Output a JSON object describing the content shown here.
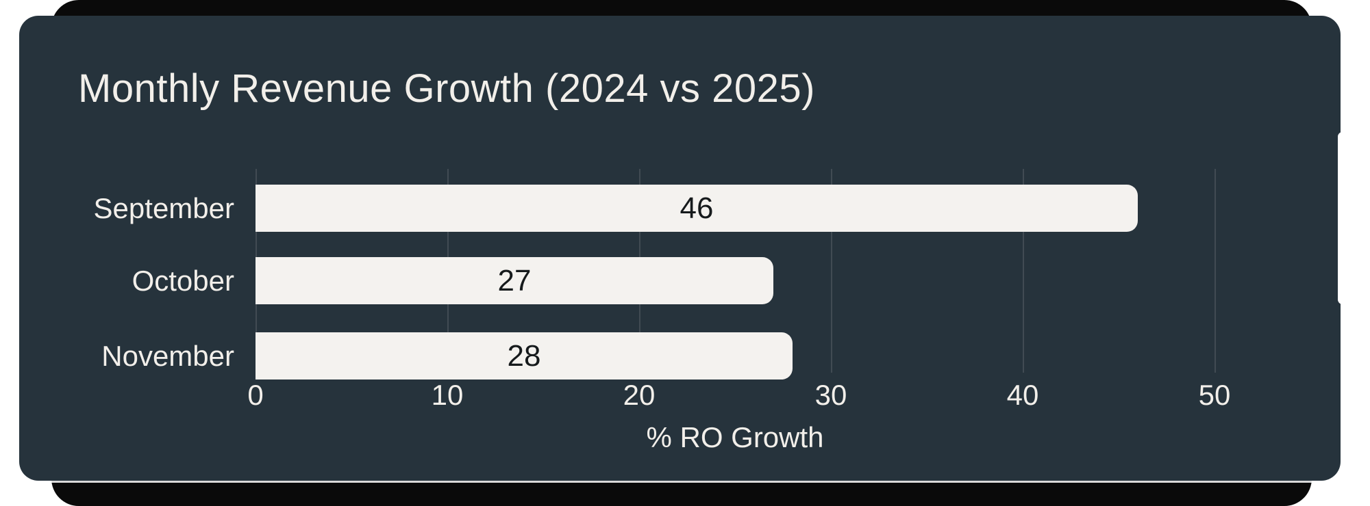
{
  "card": {
    "title": "Monthly Revenue Growth (2024 vs 2025)"
  },
  "chart_data": {
    "type": "bar",
    "orientation": "horizontal",
    "title": "Monthly Revenue Growth (2024 vs 2025)",
    "categories": [
      "September",
      "October",
      "November"
    ],
    "values": [
      46,
      27,
      28
    ],
    "xlabel": "% RO Growth",
    "ylabel": "",
    "xlim": [
      0,
      50
    ],
    "xticks": [
      0,
      10,
      20,
      30,
      40,
      50
    ],
    "grid": true,
    "legend": "none",
    "value_labels": "centered-inside-bars",
    "colors": {
      "card_background": "#26333C",
      "backing_card": "#0A0A0A",
      "bar_fill": "#F4F2EF",
      "light_text": "#F2EFEA",
      "value_text": "#161A1C",
      "gridline": "rgba(244,242,239,0.13)"
    }
  }
}
